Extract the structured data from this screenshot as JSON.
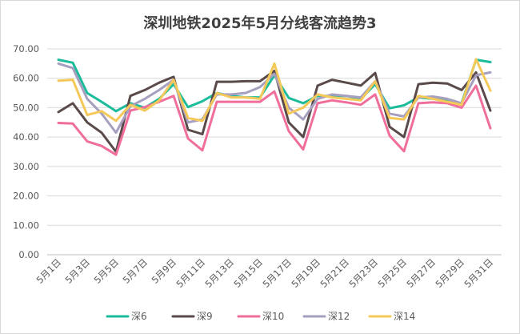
{
  "chart_data": {
    "type": "line",
    "title": "深圳地铁2025年5月分线客流趋势3",
    "xlabel": "",
    "ylabel": "",
    "ylim": [
      0,
      70
    ],
    "yticks": [
      "0.00",
      "10.00",
      "20.00",
      "30.00",
      "40.00",
      "50.00",
      "60.00",
      "70.00"
    ],
    "x": [
      "5月1日",
      "5月2日",
      "5月3日",
      "5月4日",
      "5月5日",
      "5月6日",
      "5月7日",
      "5月8日",
      "5月9日",
      "5月10日",
      "5月11日",
      "5月12日",
      "5月13日",
      "5月14日",
      "5月15日",
      "5月16日",
      "5月17日",
      "5月18日",
      "5月19日",
      "5月20日",
      "5月21日",
      "5月22日",
      "5月23日",
      "5月24日",
      "5月25日",
      "5月26日",
      "5月27日",
      "5月28日",
      "5月29日",
      "5月30日",
      "5月31日"
    ],
    "xtick_labels": [
      "5月1日",
      "5月3日",
      "5月5日",
      "5月7日",
      "5月9日",
      "5月11日",
      "5月13日",
      "5月15日",
      "5月17日",
      "5月19日",
      "5月21日",
      "5月23日",
      "5月25日",
      "5月27日",
      "5月29日",
      "5月31日"
    ],
    "grid": "horizontal",
    "legend_position": "bottom",
    "series": [
      {
        "name": "深6",
        "color": "#1bbc9b",
        "values": [
          66.3,
          65.3,
          55.0,
          52.0,
          48.8,
          51.5,
          50.0,
          53.0,
          58.0,
          50.2,
          52.2,
          55.0,
          54.0,
          53.5,
          53.5,
          61.0,
          53.3,
          51.5,
          54.0,
          54.0,
          54.0,
          53.0,
          58.0,
          49.8,
          50.8,
          53.5,
          53.0,
          52.5,
          51.5,
          66.3,
          65.5
        ]
      },
      {
        "name": "深9",
        "color": "#5a4a4a",
        "values": [
          48.5,
          51.5,
          45.0,
          41.5,
          35.0,
          54.0,
          56.0,
          58.5,
          60.5,
          42.5,
          41.0,
          58.8,
          58.8,
          59.0,
          59.0,
          62.5,
          45.0,
          40.0,
          57.5,
          59.5,
          58.5,
          57.5,
          61.8,
          43.5,
          40.0,
          58.0,
          58.5,
          58.2,
          56.0,
          62.0,
          49.0
        ]
      },
      {
        "name": "深10",
        "color": "#f06e9c",
        "values": [
          44.8,
          44.6,
          38.5,
          37.0,
          34.0,
          49.0,
          50.2,
          52.0,
          54.0,
          39.5,
          35.5,
          52.0,
          52.0,
          52.0,
          52.0,
          55.5,
          42.0,
          35.8,
          51.5,
          52.5,
          51.8,
          51.0,
          54.5,
          40.5,
          35.2,
          51.5,
          51.8,
          51.5,
          50.0,
          57.5,
          43.0
        ]
      },
      {
        "name": "深12",
        "color": "#a79fbf",
        "values": [
          65.0,
          63.5,
          53.0,
          48.0,
          41.5,
          50.5,
          53.0,
          56.0,
          59.5,
          45.0,
          46.0,
          54.5,
          54.5,
          55.0,
          57.0,
          61.5,
          50.0,
          46.0,
          53.0,
          54.5,
          54.0,
          53.5,
          59.0,
          48.0,
          47.0,
          53.5,
          53.8,
          53.0,
          51.5,
          61.0,
          62.0
        ]
      },
      {
        "name": "深14",
        "color": "#f5c85a",
        "values": [
          59.2,
          59.5,
          47.5,
          48.8,
          45.5,
          51.0,
          49.0,
          52.5,
          59.5,
          46.5,
          45.5,
          55.0,
          53.5,
          53.5,
          53.0,
          65.0,
          48.0,
          50.0,
          54.5,
          53.5,
          53.0,
          52.5,
          59.0,
          46.5,
          46.0,
          54.0,
          53.0,
          52.0,
          51.0,
          66.5,
          55.8
        ]
      }
    ]
  }
}
